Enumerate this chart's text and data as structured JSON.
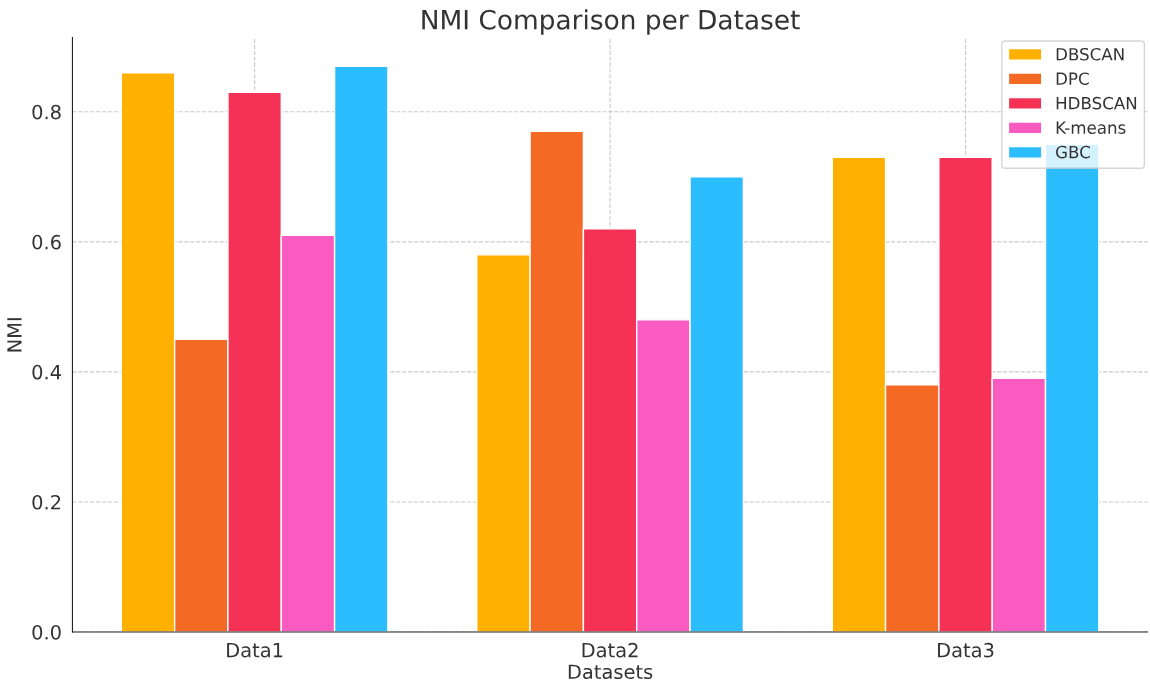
{
  "chart_data": {
    "type": "bar",
    "title": "NMI Comparison per Dataset",
    "xlabel": "Datasets",
    "ylabel": "NMI",
    "categories": [
      "Data1",
      "Data2",
      "Data3"
    ],
    "series": [
      {
        "name": "DBSCAN",
        "color": "#ffb000",
        "values": [
          0.86,
          0.58,
          0.73
        ]
      },
      {
        "name": "DPC",
        "color": "#f46a25",
        "values": [
          0.45,
          0.77,
          0.38
        ]
      },
      {
        "name": "HDBSCAN",
        "color": "#f53255",
        "values": [
          0.83,
          0.62,
          0.73
        ]
      },
      {
        "name": "K-means",
        "color": "#f95bc0",
        "values": [
          0.61,
          0.48,
          0.39
        ]
      },
      {
        "name": "GBC",
        "color": "#2bbdfe",
        "values": [
          0.87,
          0.7,
          0.75
        ]
      }
    ],
    "ylim": [
      0,
      0.914
    ],
    "yticks": [
      {
        "value": 0,
        "label": "0.0"
      },
      0.2,
      0.4,
      0.6,
      0.8
    ],
    "grid": true,
    "legend": "top right"
  }
}
